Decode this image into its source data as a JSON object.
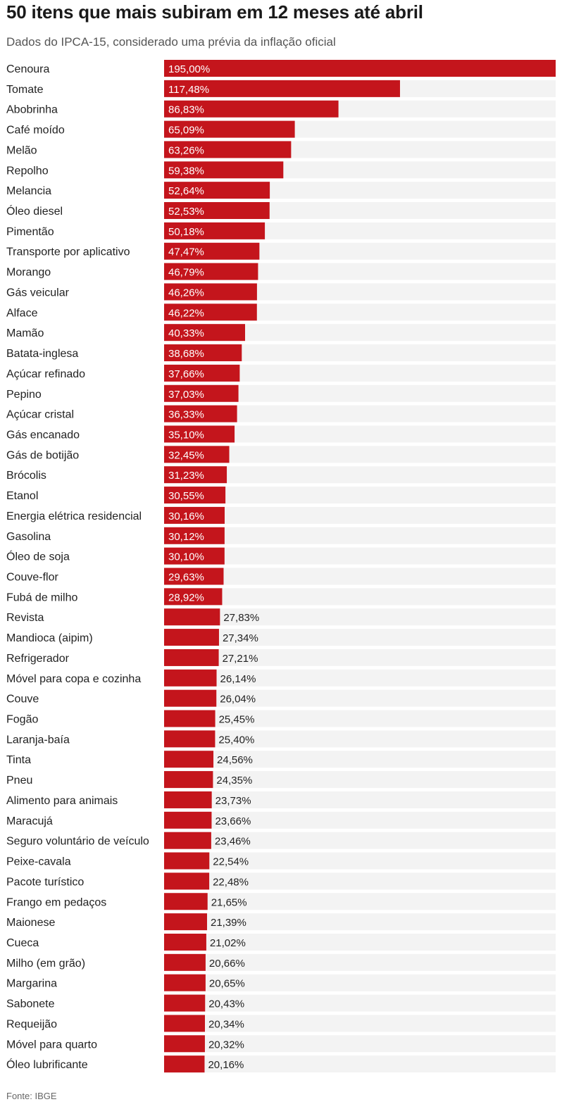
{
  "colors": {
    "bar": "#c4151c",
    "track": "#f3f3f3",
    "text": "#222222"
  },
  "chart_data": {
    "type": "bar",
    "orientation": "horizontal",
    "title": "50 itens que mais subiram em 12 meses até abril",
    "subtitle": "Dados do IPCA-15, considerado uma prévia da inflação oficial",
    "source": "Fonte: IBGE",
    "xlim": [
      0,
      195
    ],
    "grid": false,
    "categories": [
      "Cenoura",
      "Tomate",
      "Abobrinha",
      "Café moído",
      "Melão",
      "Repolho",
      "Melancia",
      "Óleo diesel",
      "Pimentão",
      "Transporte por aplicativo",
      "Morango",
      "Gás veicular",
      "Alface",
      "Mamão",
      "Batata-inglesa",
      "Açúcar refinado",
      "Pepino",
      "Açúcar cristal",
      "Gás encanado",
      "Gás de botijão",
      "Brócolis",
      "Etanol",
      "Energia elétrica residencial",
      "Gasolina",
      "Óleo de soja",
      "Couve-flor",
      "Fubá de milho",
      "Revista",
      "Mandioca (aipim)",
      "Refrigerador",
      "Móvel para copa e cozinha",
      "Couve",
      "Fogão",
      "Laranja-baía",
      "Tinta",
      "Pneu",
      "Alimento para animais",
      "Maracujá",
      "Seguro voluntário de veículo",
      "Peixe-cavala",
      "Pacote turístico",
      "Frango em pedaços",
      "Maionese",
      "Cueca",
      "Milho (em grão)",
      "Margarina",
      "Sabonete",
      "Requeijão",
      "Móvel para quarto",
      "Óleo lubrificante"
    ],
    "values": [
      195.0,
      117.48,
      86.83,
      65.09,
      63.26,
      59.38,
      52.64,
      52.53,
      50.18,
      47.47,
      46.79,
      46.26,
      46.22,
      40.33,
      38.68,
      37.66,
      37.03,
      36.33,
      35.1,
      32.45,
      31.23,
      30.55,
      30.16,
      30.12,
      30.1,
      29.63,
      28.92,
      27.83,
      27.34,
      27.21,
      26.14,
      26.04,
      25.45,
      25.4,
      24.56,
      24.35,
      23.73,
      23.66,
      23.46,
      22.54,
      22.48,
      21.65,
      21.39,
      21.02,
      20.66,
      20.65,
      20.43,
      20.34,
      20.32,
      20.16
    ],
    "value_labels": [
      "195,00%",
      "117,48%",
      "86,83%",
      "65,09%",
      "63,26%",
      "59,38%",
      "52,64%",
      "52,53%",
      "50,18%",
      "47,47%",
      "46,79%",
      "46,26%",
      "46,22%",
      "40,33%",
      "38,68%",
      "37,66%",
      "37,03%",
      "36,33%",
      "35,10%",
      "32,45%",
      "31,23%",
      "30,55%",
      "30,16%",
      "30,12%",
      "30,10%",
      "29,63%",
      "28,92%",
      "27,83%",
      "27,34%",
      "27,21%",
      "26,14%",
      "26,04%",
      "25,45%",
      "25,40%",
      "24,56%",
      "24,35%",
      "23,73%",
      "23,66%",
      "23,46%",
      "22,54%",
      "22,48%",
      "21,65%",
      "21,39%",
      "21,02%",
      "20,66%",
      "20,65%",
      "20,43%",
      "20,34%",
      "20,32%",
      "20,16%"
    ]
  }
}
